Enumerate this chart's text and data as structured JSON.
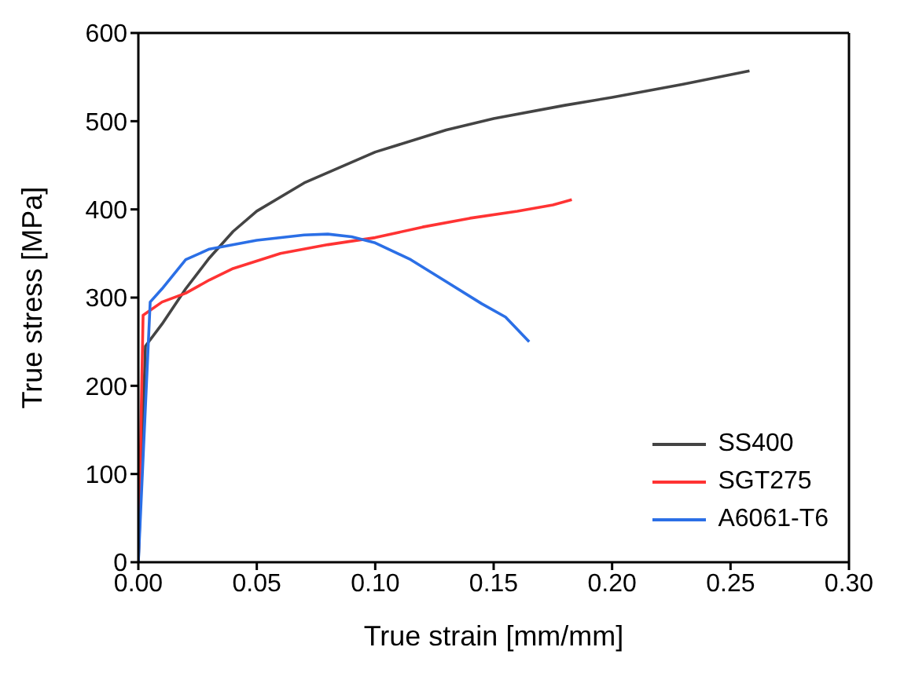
{
  "chart_data": {
    "type": "line",
    "xlabel": "True strain [mm/mm]",
    "ylabel": "True stress [MPa]",
    "xlim": [
      0,
      0.3
    ],
    "xticks": [
      {
        "value": 0,
        "label": "0.00"
      },
      {
        "value": 0.05,
        "label": "0.05"
      },
      {
        "value": 0.1,
        "label": "0.10"
      },
      {
        "value": 0.15,
        "label": "0.15"
      },
      {
        "value": 0.2,
        "label": "0.20"
      },
      {
        "value": 0.25,
        "label": "0.25"
      },
      {
        "value": 0.3,
        "label": "0.30"
      }
    ],
    "ylim": [
      0,
      600
    ],
    "yticks": [
      0,
      100,
      200,
      300,
      400,
      500,
      600
    ],
    "legend": "bottom right",
    "marker": "none",
    "line_style": "solid",
    "series": [
      {
        "name": "SS400",
        "color": "#444444",
        "x": [
          0,
          0.003,
          0.01,
          0.02,
          0.03,
          0.04,
          0.05,
          0.07,
          0.1,
          0.13,
          0.15,
          0.18,
          0.2,
          0.23,
          0.258
        ],
        "values": [
          0,
          245,
          270,
          310,
          345,
          375,
          398,
          430,
          465,
          490,
          503,
          518,
          527,
          542,
          557
        ]
      },
      {
        "name": "SGT275",
        "color": "#ff3333",
        "x": [
          0,
          0.002,
          0.01,
          0.02,
          0.03,
          0.04,
          0.06,
          0.08,
          0.1,
          0.12,
          0.14,
          0.16,
          0.175,
          0.183
        ],
        "values": [
          0,
          280,
          295,
          305,
          320,
          333,
          350,
          360,
          368,
          380,
          390,
          398,
          405,
          411
        ]
      },
      {
        "name": "A6061-T6",
        "color": "#2b6fe6",
        "x": [
          0,
          0.005,
          0.01,
          0.02,
          0.03,
          0.05,
          0.07,
          0.08,
          0.09,
          0.1,
          0.115,
          0.13,
          0.145,
          0.155,
          0.165
        ],
        "values": [
          0,
          295,
          310,
          343,
          355,
          365,
          371,
          372,
          369,
          362,
          343,
          318,
          293,
          278,
          250
        ]
      }
    ]
  }
}
